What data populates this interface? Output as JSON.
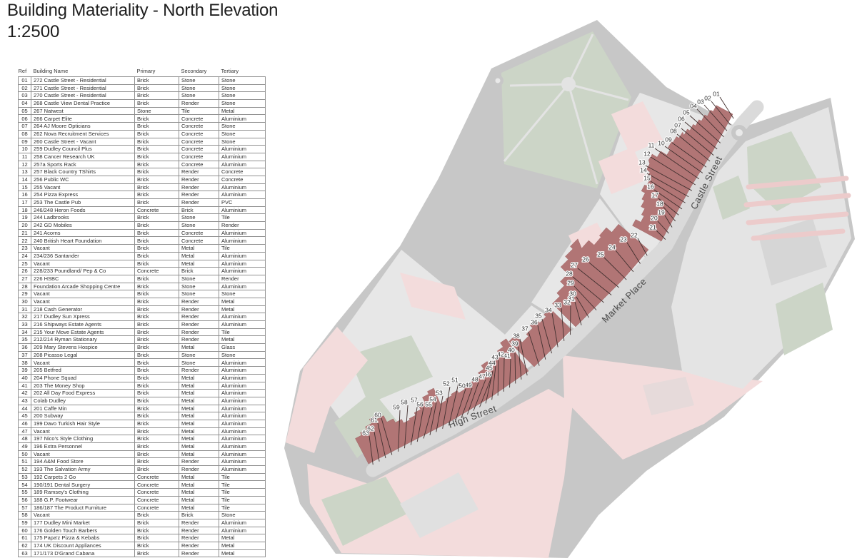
{
  "title": "Building Materiality - North Elevation",
  "scale": "1:2500",
  "table": {
    "headers": [
      "Ref",
      "Building Name",
      "Primary",
      "Secondary",
      "Tertiary"
    ],
    "rows": [
      [
        "01",
        "272 Castle Street - Residential",
        "Brick",
        "Stone",
        "Stone"
      ],
      [
        "02",
        "271 Castle Street - Residential",
        "Brick",
        "Stone",
        "Stone"
      ],
      [
        "03",
        "270 Castle Street - Residential",
        "Brick",
        "Stone",
        "Stone"
      ],
      [
        "04",
        "268 Castle View Dental Practice",
        "Brick",
        "Render",
        "Stone"
      ],
      [
        "05",
        "267 Natwest",
        "Stone",
        "Tile",
        "Metal"
      ],
      [
        "06",
        "266 Carpet Elite",
        "Brick",
        "Concrete",
        "Aluminium"
      ],
      [
        "07",
        "264 AJ Moore Opticians",
        "Brick",
        "Concrete",
        "Stone"
      ],
      [
        "08",
        "262 Nova Recruitment Services",
        "Brick",
        "Concrete",
        "Stone"
      ],
      [
        "09",
        "260 Castle Street - Vacant",
        "Brick",
        "Concrete",
        "Stone"
      ],
      [
        "10",
        "259 Dudley Council Plus",
        "Brick",
        "Concrete",
        "Aluminium"
      ],
      [
        "11",
        "258 Cancer Research UK",
        "Brick",
        "Concrete",
        "Aluminium"
      ],
      [
        "12",
        "257a Sports Rack",
        "Brick",
        "Concrete",
        "Aluminium"
      ],
      [
        "13",
        "257 Black Country TShirts",
        "Brick",
        "Render",
        "Concrete"
      ],
      [
        "14",
        "256 Public WC",
        "Brick",
        "Render",
        "Concrete"
      ],
      [
        "15",
        "255 Vacant",
        "Brick",
        "Render",
        "Aluminium"
      ],
      [
        "16",
        "254 Pizza Express",
        "Brick",
        "Render",
        "Aluminium"
      ],
      [
        "17",
        "253 The Castle Pub",
        "Brick",
        "Render",
        "PVC"
      ],
      [
        "18",
        "246/248 Heron Foods",
        "Concrete",
        "Brick",
        "Aluminium"
      ],
      [
        "19",
        "244 Ladbrooks",
        "Brick",
        "Stone",
        "Tile"
      ],
      [
        "20",
        "242 GD Mobiles",
        "Brick",
        "Stone",
        "Render"
      ],
      [
        "21",
        "241 Acorns",
        "Brick",
        "Concrete",
        "Aluminium"
      ],
      [
        "22",
        "240 British Heart Foundation",
        "Brick",
        "Concrete",
        "Aluminium"
      ],
      [
        "23",
        "Vacant",
        "Brick",
        "Metal",
        "Tile"
      ],
      [
        "24",
        "234/236 Santander",
        "Brick",
        "Metal",
        "Aluminium"
      ],
      [
        "25",
        "Vacant",
        "Brick",
        "Metal",
        "Aluminium"
      ],
      [
        "26",
        "228/233 Poundland/ Pep & Co",
        "Concrete",
        "Brick",
        "Aluminium"
      ],
      [
        "27",
        "226 HSBC",
        "Brick",
        "Stone",
        "Render"
      ],
      [
        "28",
        "Foundation Arcade Shopping Centre",
        "Brick",
        "Stone",
        "Aluminium"
      ],
      [
        "29",
        "Vacant",
        "Brick",
        "Stone",
        "Stone"
      ],
      [
        "30",
        "Vacant",
        "Brick",
        "Render",
        "Metal"
      ],
      [
        "31",
        "218 Cash Generator",
        "Brick",
        "Render",
        "Metal"
      ],
      [
        "32",
        "217 Dudley Sun Xpress",
        "Brick",
        "Render",
        "Aluminium"
      ],
      [
        "33",
        "216 Shipways Estate Agents",
        "Brick",
        "Render",
        "Aluminium"
      ],
      [
        "34",
        "215 Your Move Estate Agents",
        "Brick",
        "Render",
        "Tile"
      ],
      [
        "35",
        "212/214 Ryman Stationary",
        "Brick",
        "Render",
        "Metal"
      ],
      [
        "36",
        "209 Mary Stevens Hospice",
        "Brick",
        "Metal",
        "Glass"
      ],
      [
        "37",
        "208 Picasso Legal",
        "Brick",
        "Stone",
        "Stone"
      ],
      [
        "38",
        "Vacant",
        "Brick",
        "Stone",
        "Aluminium"
      ],
      [
        "39",
        "205 Betfred",
        "Brick",
        "Render",
        "Aluminium"
      ],
      [
        "40",
        "204 Phone Squad",
        "Brick",
        "Metal",
        "Aluminium"
      ],
      [
        "41",
        "203 The Money Shop",
        "Brick",
        "Metal",
        "Aluminium"
      ],
      [
        "42",
        "202 All Day Food Express",
        "Brick",
        "Metal",
        "Aluminium"
      ],
      [
        "43",
        "Colab Dudley",
        "Brick",
        "Metal",
        "Aluminium"
      ],
      [
        "44",
        "201 Caffe Min",
        "Brick",
        "Metal",
        "Aluminium"
      ],
      [
        "45",
        "200 Subway",
        "Brick",
        "Metal",
        "Aluminium"
      ],
      [
        "46",
        "199 Davo Turkish Hair Style",
        "Brick",
        "Metal",
        "Aluminium"
      ],
      [
        "47",
        "Vacant",
        "Brick",
        "Metal",
        "Aluminium"
      ],
      [
        "48",
        "197 Nico's Style Clothing",
        "Brick",
        "Metal",
        "Aluminium"
      ],
      [
        "49",
        "196 Extra Personnel",
        "Brick",
        "Metal",
        "Aluminium"
      ],
      [
        "50",
        "Vacant",
        "Brick",
        "Metal",
        "Aluminium"
      ],
      [
        "51",
        "194 A&M Food Store",
        "Brick",
        "Render",
        "Aluminium"
      ],
      [
        "52",
        "193 The Salvation Army",
        "Brick",
        "Render",
        "Aluminium"
      ],
      [
        "53",
        "192 Carpets 2 Go",
        "Concrete",
        "Metal",
        "Tile"
      ],
      [
        "54",
        "190/191 Dental Surgery",
        "Concrete",
        "Metal",
        "Tile"
      ],
      [
        "55",
        "189 Ramsey's Clothing",
        "Concrete",
        "Metal",
        "Tile"
      ],
      [
        "56",
        "188 G.P. Footwear",
        "Concrete",
        "Metal",
        "Tile"
      ],
      [
        "57",
        "186/187 The Product Furniture",
        "Concrete",
        "Metal",
        "Tile"
      ],
      [
        "58",
        "Vacant",
        "Brick",
        "Brick",
        "Stone"
      ],
      [
        "59",
        "177 Dudley Mini Market",
        "Brick",
        "Render",
        "Aluminium"
      ],
      [
        "60",
        "176 Golden Touch Barbers",
        "Brick",
        "Render",
        "Aluminium"
      ],
      [
        "61",
        "175 Papa'z Pizza & Kebabs",
        "Brick",
        "Render",
        "Metal"
      ],
      [
        "62",
        "174 UK Discount Appliances",
        "Brick",
        "Render",
        "Metal"
      ],
      [
        "63",
        "171/173 D'Grand Cabana",
        "Brick",
        "Render",
        "Metal"
      ]
    ]
  },
  "map": {
    "street_labels": [
      "Castle Street",
      "Market Place",
      "High Street"
    ],
    "colors": {
      "road": "#c7c7c7",
      "street": "#dadada",
      "block_gray": "#e7e7e7",
      "block_pink": "#f3dcdc",
      "green": "#ccd5c7",
      "highlight": "#b17575",
      "leader": "#41302f",
      "ref_label": "#2f2f2f",
      "street_label": "#4a4a4a",
      "parking_stripe": "#eccbcb"
    }
  }
}
